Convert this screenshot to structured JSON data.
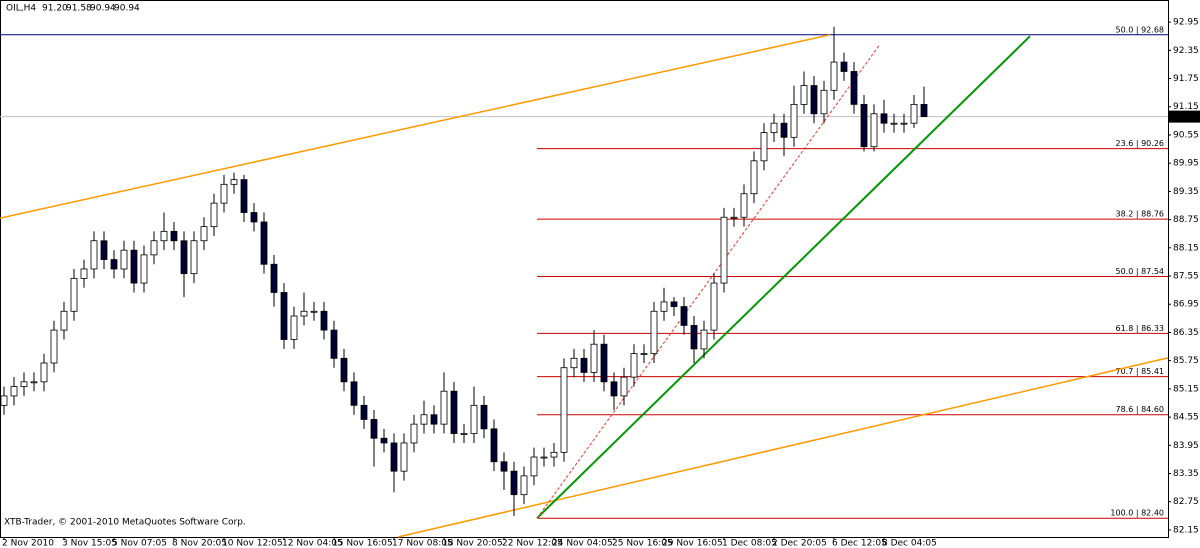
{
  "chart_data": {
    "type": "candlestick",
    "title": "OIL,H4",
    "ohlc_labels": [
      "91.20",
      "91.58",
      "90.94",
      "90.94"
    ],
    "footer": "XTB-Trader, © 2001-2010 MetaQuotes Software Corp.",
    "categories": [
      "2 Nov 2010",
      null,
      null,
      null,
      null,
      null,
      "3 Nov 15:05",
      null,
      null,
      null,
      null,
      "5 Nov 07:05",
      null,
      null,
      null,
      null,
      null,
      "8 Nov 20:05",
      null,
      null,
      null,
      null,
      "10 Nov 12:05",
      null,
      null,
      null,
      null,
      null,
      "12 Nov 04:05",
      null,
      null,
      null,
      null,
      "15 Nov 16:05",
      null,
      null,
      null,
      null,
      null,
      "17 Nov 08:05",
      null,
      null,
      null,
      null,
      "18 Nov 20:05",
      null,
      null,
      null,
      null,
      null,
      "22 Nov 12:05",
      null,
      null,
      null,
      null,
      "24 Nov 04:05",
      null,
      null,
      null,
      null,
      null,
      "25 Nov 16:05",
      null,
      null,
      null,
      null,
      "29 Nov 16:05",
      null,
      null,
      null,
      null,
      null,
      "1 Dec 08:05",
      null,
      null,
      null,
      null,
      "2 Dec 20:05",
      null,
      null,
      null,
      null,
      null,
      "6 Dec 12:05",
      null,
      null,
      null,
      null,
      "8 Dec 04:05",
      null,
      null,
      null,
      null
    ],
    "open": [
      84.8,
      85.0,
      85.2,
      85.3,
      85.3,
      85.7,
      86.4,
      86.8,
      87.5,
      87.7,
      88.3,
      87.9,
      87.7,
      88.1,
      87.4,
      88.0,
      88.3,
      88.5,
      88.3,
      87.6,
      88.3,
      88.6,
      89.1,
      89.5,
      89.6,
      88.9,
      88.7,
      87.8,
      87.2,
      86.2,
      86.7,
      86.8,
      86.8,
      86.4,
      85.8,
      85.3,
      84.8,
      84.5,
      84.1,
      84.0,
      83.4,
      84.0,
      84.4,
      84.6,
      84.4,
      85.1,
      84.2,
      84.2,
      84.8,
      84.3,
      83.6,
      83.4,
      82.9,
      83.3,
      83.7,
      83.7,
      83.8,
      85.6,
      85.8,
      85.5,
      86.1,
      85.3,
      85.0,
      85.4,
      85.9,
      85.9,
      86.8,
      87.0,
      86.9,
      86.5,
      86.0,
      86.4,
      87.4,
      88.8,
      88.8,
      89.3,
      90.0,
      90.6,
      90.8,
      90.5,
      91.2,
      91.6,
      91.0,
      91.5,
      92.1,
      91.9,
      91.2,
      90.3,
      91.0,
      90.8,
      90.8,
      90.8,
      91.2
    ],
    "high": [
      85.2,
      85.4,
      85.5,
      85.5,
      85.9,
      86.6,
      87.0,
      87.7,
      87.9,
      88.5,
      88.5,
      88.1,
      88.3,
      88.3,
      88.2,
      88.5,
      88.9,
      88.7,
      88.5,
      88.5,
      88.8,
      89.3,
      89.7,
      89.75,
      89.7,
      89.1,
      88.9,
      88.0,
      87.4,
      86.9,
      87.2,
      87.0,
      87.0,
      86.6,
      86.0,
      85.5,
      85.0,
      84.7,
      84.3,
      84.2,
      84.2,
      84.6,
      84.9,
      84.8,
      85.5,
      85.3,
      84.4,
      85.2,
      85.0,
      84.5,
      83.8,
      83.6,
      83.5,
      83.9,
      83.9,
      84.0,
      85.8,
      86.0,
      86.0,
      86.4,
      86.3,
      85.5,
      85.6,
      86.1,
      86.1,
      87.0,
      87.3,
      87.1,
      87.1,
      86.7,
      86.6,
      87.6,
      89.0,
      89.0,
      89.5,
      90.2,
      90.8,
      91.0,
      91.0,
      91.6,
      91.9,
      91.8,
      91.7,
      92.85,
      92.3,
      92.1,
      91.4,
      91.2,
      91.3,
      91.0,
      91.0,
      91.4,
      91.58
    ],
    "low": [
      84.6,
      84.8,
      85.0,
      85.1,
      85.1,
      85.5,
      86.2,
      86.6,
      87.3,
      87.5,
      87.7,
      87.5,
      87.5,
      87.2,
      87.2,
      87.8,
      88.1,
      88.1,
      87.1,
      87.4,
      88.1,
      88.4,
      88.9,
      89.3,
      88.7,
      88.5,
      87.6,
      86.9,
      86.0,
      86.0,
      86.5,
      86.6,
      86.2,
      85.6,
      85.1,
      84.6,
      84.3,
      83.5,
      83.8,
      82.95,
      83.2,
      83.8,
      84.2,
      84.2,
      84.2,
      84.0,
      84.0,
      84.0,
      84.1,
      83.4,
      83.0,
      82.45,
      82.7,
      83.1,
      83.5,
      83.5,
      83.6,
      85.4,
      85.3,
      85.3,
      85.1,
      84.7,
      84.8,
      85.2,
      85.7,
      85.7,
      86.6,
      86.7,
      86.3,
      85.7,
      85.8,
      86.2,
      87.2,
      88.6,
      88.6,
      89.1,
      89.8,
      90.4,
      90.1,
      90.3,
      91.0,
      90.8,
      90.8,
      91.3,
      91.7,
      91.0,
      90.2,
      90.2,
      90.6,
      90.6,
      90.6,
      90.7,
      90.94
    ],
    "close": [
      85.0,
      85.2,
      85.3,
      85.3,
      85.7,
      86.4,
      86.8,
      87.5,
      87.7,
      88.3,
      87.9,
      87.7,
      88.1,
      87.4,
      88.0,
      88.3,
      88.5,
      88.3,
      87.6,
      88.3,
      88.6,
      89.1,
      89.5,
      89.6,
      88.9,
      88.7,
      87.8,
      87.2,
      86.2,
      86.7,
      86.8,
      86.8,
      86.4,
      85.8,
      85.3,
      84.8,
      84.5,
      84.1,
      84.0,
      83.4,
      84.0,
      84.4,
      84.6,
      84.4,
      85.1,
      84.2,
      84.2,
      84.8,
      84.3,
      83.6,
      83.4,
      82.9,
      83.3,
      83.7,
      83.7,
      83.8,
      85.6,
      85.8,
      85.5,
      86.1,
      85.3,
      85.0,
      85.4,
      85.9,
      85.9,
      86.8,
      87.0,
      86.9,
      86.5,
      86.0,
      86.4,
      87.4,
      88.8,
      88.8,
      89.3,
      90.0,
      90.6,
      90.8,
      90.5,
      91.2,
      91.6,
      91.0,
      91.5,
      92.1,
      91.9,
      91.2,
      90.3,
      91.0,
      90.8,
      90.8,
      90.8,
      91.2,
      90.94
    ],
    "up_color": "#ffffff",
    "down_color": "#000033",
    "ylim": [
      82.0,
      93.42
    ],
    "yticks": [
      92.95,
      92.35,
      91.75,
      91.15,
      90.55,
      89.95,
      89.35,
      88.75,
      88.15,
      87.55,
      86.95,
      86.35,
      85.75,
      85.15,
      84.55,
      83.95,
      83.35,
      82.75,
      82.15
    ],
    "last_price": 90.94,
    "fib_levels": [
      {
        "label": "50.0 | 92.68",
        "value": 92.68,
        "color": "#000080"
      },
      {
        "label": "23.6 | 90.26",
        "value": 90.26,
        "color": "#cc0000"
      },
      {
        "label": "38.2 | 88.76",
        "value": 88.76,
        "color": "#cc0000"
      },
      {
        "label": "50.0 | 87.54",
        "value": 87.54,
        "color": "#cc0000"
      },
      {
        "label": "61.8 | 86.33",
        "value": 86.33,
        "color": "#cc0000"
      },
      {
        "label": "70.7 | 85.41",
        "value": 85.41,
        "color": "#cc0000"
      },
      {
        "label": "78.6 | 84.60",
        "value": 84.6,
        "color": "#cc0000"
      },
      {
        "label": "100.0 | 82.40",
        "value": 82.4,
        "color": "#cc0000"
      }
    ],
    "trendlines": [
      {
        "color": "#ff9900",
        "values": [
          88.78,
          92.68
        ]
      },
      {
        "color": "#ff9900",
        "values": [
          82.0,
          85.81
        ]
      },
      {
        "color": "#009900",
        "values": [
          82.4,
          92.65
        ]
      },
      {
        "color": "#ff3333",
        "values": [
          82.4,
          92.48
        ]
      }
    ]
  }
}
